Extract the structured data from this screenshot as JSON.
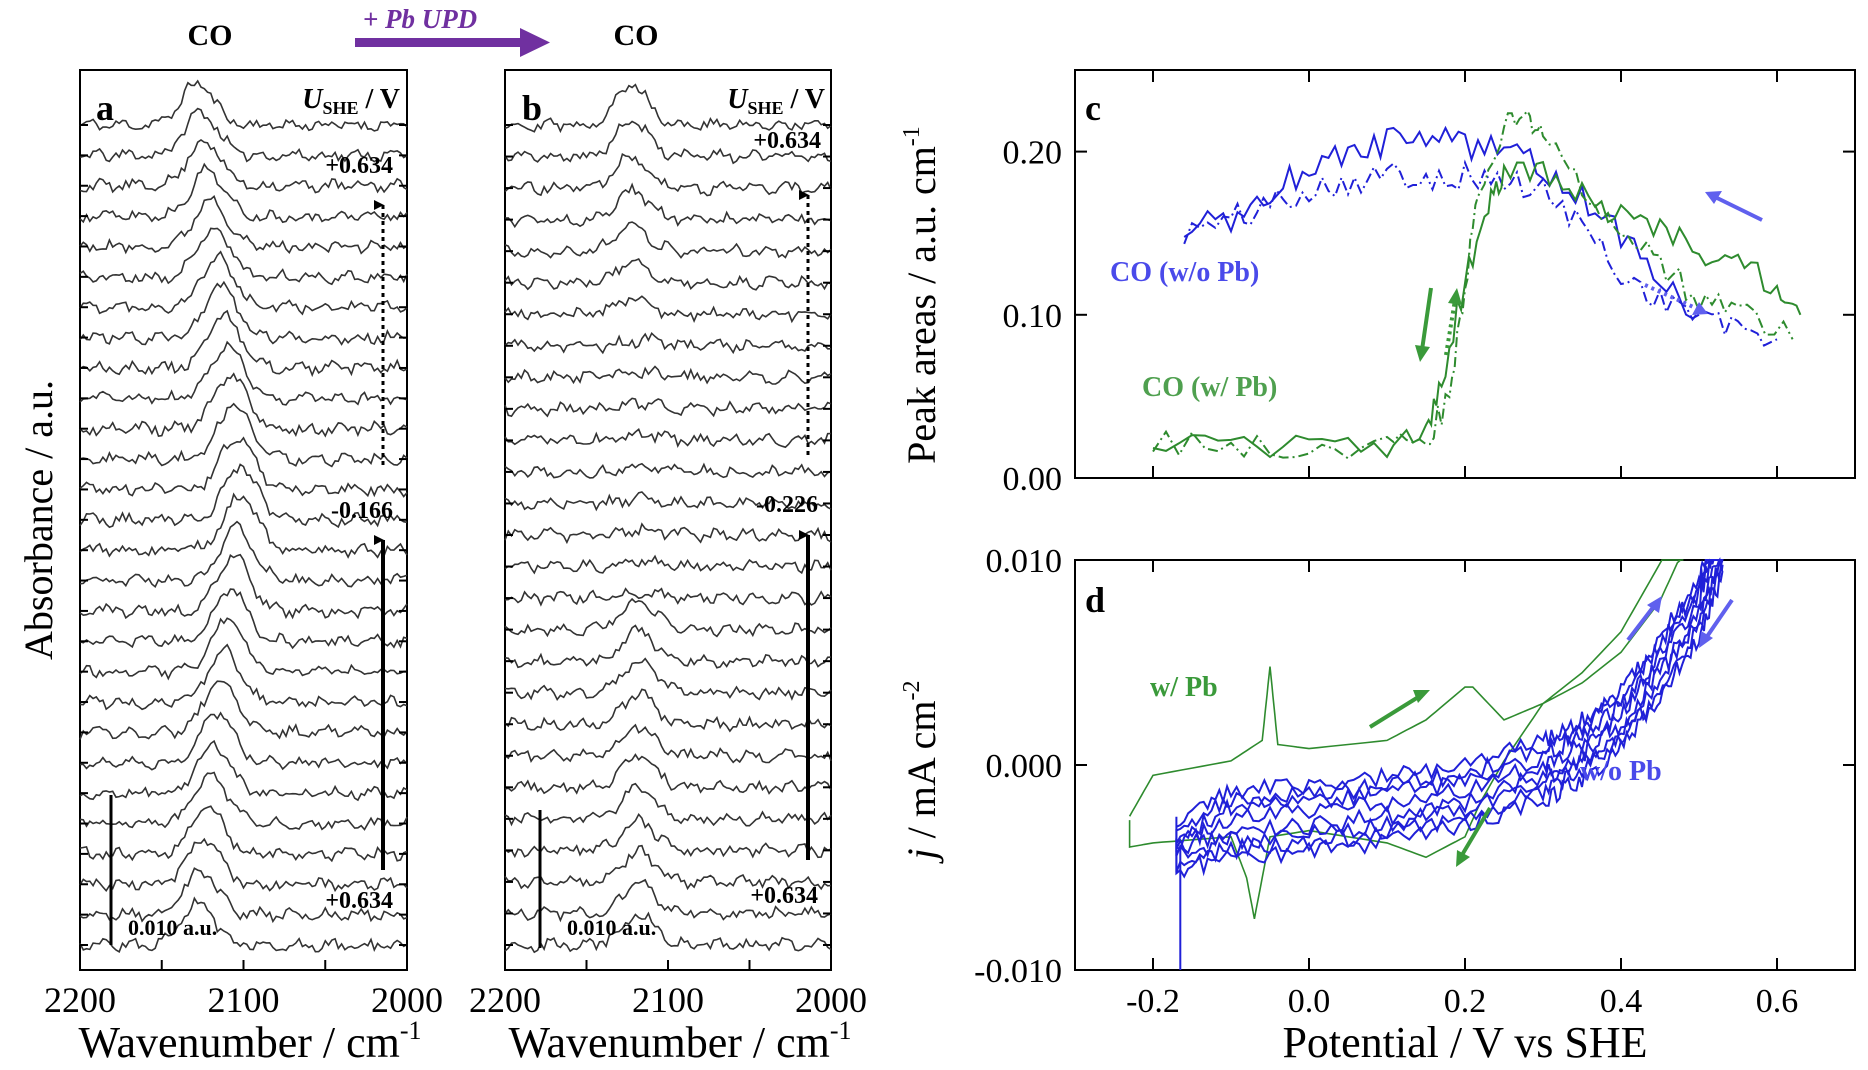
{
  "header": {
    "left_species": "CO",
    "right_species": "CO",
    "arrow_label": "+ Pb UPD",
    "arrow_color": "#7030a0"
  },
  "chart_data": [
    {
      "panel": "a",
      "type": "line",
      "ylabel": "Absorbance / a.u.",
      "xlabel": "Wavenumber  / cm-1",
      "xlabel_main": "Wavenumber  / cm",
      "xlabel_sup": "-1",
      "xlim": [
        2200,
        2000
      ],
      "xticks": [
        "2200",
        "2100",
        "2000"
      ],
      "potential_header_main": "U",
      "potential_header_sub": "SHE",
      "potential_header_unit": " / V",
      "potential_labels": [
        "+0.634",
        "-0.166",
        "+0.634"
      ],
      "scale_bar_label": "0.010 a.u.",
      "scale_bar": 0.01,
      "num_spectra": 28,
      "peak_center_wavenumber": 2115,
      "peak_shift_range": [
        2130,
        2095
      ],
      "trace_color": "#333333"
    },
    {
      "panel": "b",
      "type": "line",
      "xlabel": "Wavenumber  / cm-1",
      "xlabel_main": "Wavenumber  / cm",
      "xlabel_sup": "-1",
      "xlim": [
        2200,
        2000
      ],
      "xticks": [
        "2200",
        "2100",
        "2000"
      ],
      "potential_header_main": "U",
      "potential_header_sub": "SHE",
      "potential_header_unit": " / V",
      "potential_labels": [
        "+0.634",
        "-0.226",
        "+0.634"
      ],
      "scale_bar_label": "0.010 a.u.",
      "scale_bar": 0.01,
      "num_spectra": 27,
      "peak_center_wavenumber": 2120,
      "trace_color": "#333333"
    },
    {
      "panel": "c",
      "type": "line",
      "ylabel": "Peak areas / a.u. cm-1",
      "ylabel_main": "Peak areas / a.u. cm",
      "ylabel_sup": "-1",
      "xlim": [
        -0.3,
        0.7
      ],
      "ylim": [
        0.0,
        0.25
      ],
      "yticks": [
        "0.00",
        "0.10",
        "0.20"
      ],
      "series": [
        {
          "name": "CO (w/o Pb)",
          "color": "#2020d8",
          "style": "solid",
          "x": [
            -0.16,
            -0.1,
            -0.05,
            0.0,
            0.05,
            0.1,
            0.15,
            0.2,
            0.25,
            0.3,
            0.35,
            0.4,
            0.45,
            0.5
          ],
          "y": [
            0.153,
            0.16,
            0.175,
            0.19,
            0.2,
            0.205,
            0.21,
            0.205,
            0.2,
            0.19,
            0.17,
            0.15,
            0.12,
            0.1
          ]
        },
        {
          "name": "",
          "color": "#2020d8",
          "style": "dashdot",
          "x": [
            -0.16,
            -0.1,
            -0.05,
            0.0,
            0.05,
            0.1,
            0.15,
            0.2,
            0.25,
            0.3,
            0.35,
            0.4,
            0.45,
            0.5,
            0.55,
            0.6
          ],
          "y": [
            0.15,
            0.158,
            0.168,
            0.178,
            0.182,
            0.185,
            0.186,
            0.185,
            0.182,
            0.175,
            0.155,
            0.125,
            0.11,
            0.1,
            0.09,
            0.085
          ]
        },
        {
          "name": "CO (w/ Pb)",
          "color": "#2e8b2e",
          "style": "solid",
          "x": [
            -0.2,
            -0.1,
            0.0,
            0.1,
            0.15,
            0.17,
            0.2,
            0.23,
            0.25,
            0.3,
            0.35,
            0.4,
            0.45,
            0.5,
            0.55,
            0.6,
            0.63
          ],
          "y": [
            0.015,
            0.02,
            0.018,
            0.02,
            0.025,
            0.06,
            0.12,
            0.17,
            0.185,
            0.185,
            0.175,
            0.16,
            0.155,
            0.14,
            0.13,
            0.12,
            0.1
          ]
        },
        {
          "name": "",
          "color": "#2e8b2e",
          "style": "dashdot",
          "x": [
            -0.2,
            -0.1,
            0.0,
            0.1,
            0.15,
            0.18,
            0.2,
            0.22,
            0.25,
            0.28,
            0.3,
            0.35,
            0.4,
            0.45,
            0.5,
            0.55,
            0.62
          ],
          "y": [
            0.02,
            0.022,
            0.02,
            0.02,
            0.022,
            0.05,
            0.12,
            0.18,
            0.215,
            0.225,
            0.21,
            0.18,
            0.15,
            0.13,
            0.11,
            0.1,
            0.085
          ]
        }
      ],
      "annotations": [
        "CO (w/o Pb)",
        "CO (w/ Pb)"
      ]
    },
    {
      "panel": "d",
      "type": "line",
      "ylabel": "j / mA cm-2",
      "ylabel_j": "j",
      "ylabel_main": " / mA cm",
      "ylabel_sup": "-2",
      "xlabel": "Potential /  V vs SHE",
      "xlim": [
        -0.3,
        0.7
      ],
      "ylim": [
        -0.01,
        0.01
      ],
      "xticks": [
        "-0.2",
        "0.0",
        "0.2",
        "0.4",
        "0.6"
      ],
      "yticks": [
        "0.010",
        "0.000",
        "-0.010"
      ],
      "series": [
        {
          "name": "w/ Pb",
          "color": "#2e8b2e",
          "x_anodic": [
            -0.23,
            -0.2,
            -0.1,
            -0.06,
            -0.05,
            -0.04,
            0.0,
            0.1,
            0.15,
            0.2,
            0.21,
            0.25,
            0.3,
            0.35,
            0.4,
            0.45,
            0.48
          ],
          "y_anodic": [
            -0.0025,
            -0.0005,
            0.0002,
            0.0012,
            0.0048,
            0.001,
            0.0008,
            0.0012,
            0.0022,
            0.0038,
            0.0038,
            0.0022,
            0.003,
            0.004,
            0.0055,
            0.008,
            0.0105
          ],
          "x_cathodic": [
            0.46,
            0.4,
            0.35,
            0.3,
            0.25,
            0.22,
            0.2,
            0.15,
            0.1,
            0.0,
            -0.05,
            -0.07,
            -0.08,
            -0.1,
            -0.2,
            -0.23
          ],
          "y_cathodic": [
            0.0105,
            0.0065,
            0.0045,
            0.003,
            0.0002,
            -0.0018,
            -0.0035,
            -0.0045,
            -0.0038,
            -0.0032,
            -0.0035,
            -0.0075,
            -0.0055,
            -0.0035,
            -0.0038,
            -0.004
          ]
        },
        {
          "name": "w/o Pb",
          "color": "#2020d8",
          "x_anodic": [
            -0.17,
            -0.1,
            0.0,
            0.1,
            0.2,
            0.3,
            0.35,
            0.4,
            0.45,
            0.5,
            0.52
          ],
          "y_anodic": [
            -0.004,
            -0.0025,
            -0.0022,
            -0.0018,
            -0.0012,
            0.0,
            0.001,
            0.0025,
            0.005,
            0.008,
            0.0105
          ],
          "x_cathodic": [
            0.53,
            0.5,
            0.45,
            0.4,
            0.35,
            0.3,
            0.2,
            0.1,
            0.0,
            -0.1,
            -0.17
          ],
          "y_cathodic": [
            0.0105,
            0.0075,
            0.0045,
            0.002,
            0.0005,
            -0.0005,
            -0.0018,
            -0.0025,
            -0.003,
            -0.0033,
            -0.004
          ],
          "spike_x": -0.165,
          "spike_y": -0.01
        }
      ],
      "annotations": [
        "w/ Pb",
        "w/o Pb"
      ]
    }
  ],
  "panel_letters": [
    "a",
    "b",
    "c",
    "d"
  ],
  "colors": {
    "blue": "#2020d8",
    "green": "#2e8b2e",
    "purple": "#7030a0",
    "black": "#000000"
  }
}
